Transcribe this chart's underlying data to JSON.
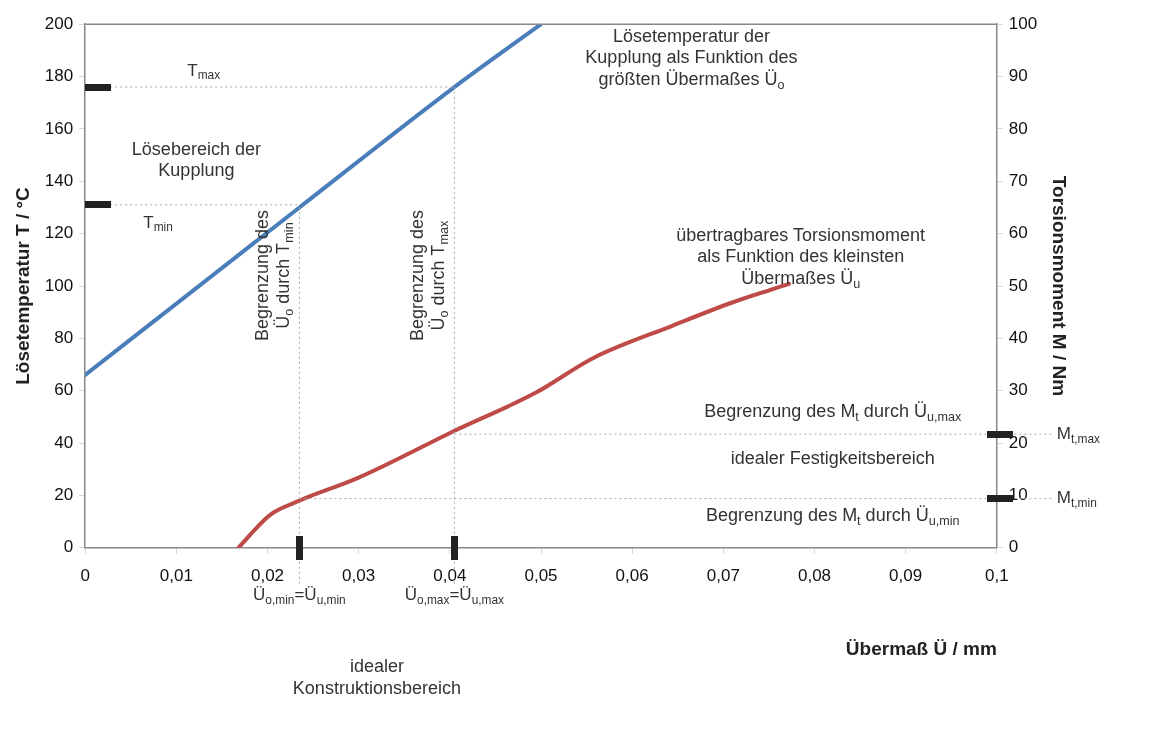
{
  "chart_data": {
    "type": "line",
    "xlabel": "Übermaß Ü / mm",
    "ylabel": "Lösetemperatur T / °C",
    "y2label": "Torsionsmoment M / Nm",
    "xlim": [
      0,
      0.1
    ],
    "xticks": [
      0,
      {
        "value": 0.01,
        "label": "0,01"
      },
      {
        "value": 0.02,
        "label": "0,02"
      },
      {
        "value": 0.03,
        "label": "0,03"
      },
      {
        "value": 0.04,
        "label": "0,04"
      },
      {
        "value": 0.05,
        "label": "0,05"
      },
      {
        "value": 0.06,
        "label": "0,06"
      },
      {
        "value": 0.07,
        "label": "0,07"
      },
      {
        "value": 0.08,
        "label": "0,08"
      },
      {
        "value": 0.09,
        "label": "0,09"
      },
      {
        "value": 0.1,
        "label": "0,1"
      }
    ],
    "ylim": [
      0,
      200
    ],
    "yticks": [
      0,
      20,
      40,
      60,
      80,
      100,
      120,
      140,
      160,
      180,
      200
    ],
    "y2lim": [
      0,
      100
    ],
    "y2ticks": [
      0,
      10,
      20,
      30,
      40,
      50,
      60,
      70,
      80,
      90,
      100
    ],
    "series": [
      {
        "color": "#4a7ebb",
        "x": [
          0,
          0.0235,
          0.0405,
          0.05
        ],
        "values": [
          66,
          130,
          176,
          200
        ]
      },
      {
        "color": "#be4b48",
        "axis": "y2",
        "x": [
          0.0168,
          0.0203,
          0.0235,
          0.03,
          0.0407,
          0.0494,
          0.0558,
          0.0644,
          0.0709,
          0.0772
        ],
        "values": [
          0,
          6.3,
          9,
          13.4,
          22.5,
          29.6,
          36.3,
          42.4,
          46.8,
          50.4
        ]
      }
    ],
    "ref_lines": [
      {
        "axis": "x",
        "value": 0.0235,
        "label": "Ü$_{o,min}$=Ü$_{u,min}$"
      },
      {
        "axis": "x",
        "value": 0.0405,
        "label": "Ü$_{o,max}$=Ü$_{u,max}$"
      },
      {
        "axis": "y",
        "value": 131,
        "label": "T$_{min}$"
      },
      {
        "axis": "y",
        "value": 176,
        "label": "T$_{max}$"
      },
      {
        "axis": "y2",
        "value": 9.4,
        "label": "M$_{t,min}$"
      },
      {
        "axis": "y2",
        "value": 21.7,
        "label": "M$_{t,max}$"
      }
    ],
    "annotations": [
      "Lösebereich der\nKupplung",
      "Lösetemperatur der\nKupplung als Funktion des\ngrößten Übermaßes Ü$_{o}$",
      "übertragbares Torsionsmoment\nals Funktion des kleinsten\nÜbermaßes Ü$_{u}$",
      {
        "text": "Begrenzung des\nÜ$_{o}$ durch T$_{min}$",
        "x": 0.0235
      },
      {
        "text": "Begrenzung des\nÜ$_{o}$ durch T$_{max}$",
        "x": 0.0405
      },
      "Begrenzung des M$_{t}$ durch Ü$_{u,max}$",
      "idealer Festigkeitsbereich",
      "Begrenzung des M$_{t}$ durch Ü$_{u,min}$",
      "idealer\nKonstruktionsbereich"
    ],
    "grid": false,
    "line_style": "solid",
    "marker": "none",
    "legend": false
  }
}
